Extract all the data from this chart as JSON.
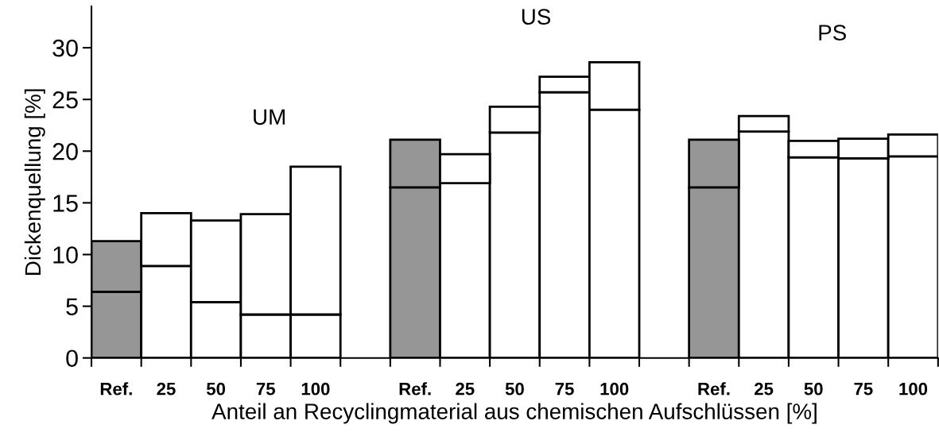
{
  "chart_data": {
    "type": "bar",
    "stacked": true,
    "xlabel": "Anteil an Recyclingmaterial aus chemischen Aufschlüssen [%]",
    "ylabel": "Dickenquellung [%]",
    "categories": [
      "Ref.",
      "25",
      "50",
      "75",
      "100",
      null,
      "Ref.",
      "25",
      "50",
      "75",
      "100",
      null,
      "Ref.",
      "25",
      "50",
      "75",
      "100"
    ],
    "series": [
      {
        "colors": [
          "#969696",
          "#ffffff",
          "#ffffff",
          "#ffffff",
          "#ffffff",
          "#ffffff",
          "#969696",
          "#ffffff",
          "#ffffff",
          "#ffffff",
          "#ffffff",
          "#ffffff",
          "#969696",
          "#ffffff",
          "#ffffff",
          "#ffffff",
          "#ffffff"
        ],
        "values": [
          6.4,
          8.9,
          5.4,
          4.2,
          4.2,
          null,
          16.5,
          16.9,
          21.8,
          25.7,
          24.0,
          null,
          16.5,
          21.9,
          19.4,
          19.3,
          19.5
        ]
      },
      {
        "colors": [
          "#969696",
          "#ffffff",
          "#ffffff",
          "#ffffff",
          "#ffffff",
          "#ffffff",
          "#969696",
          "#ffffff",
          "#ffffff",
          "#ffffff",
          "#ffffff",
          "#ffffff",
          "#969696",
          "#ffffff",
          "#ffffff",
          "#ffffff",
          "#ffffff"
        ],
        "values": [
          4.9,
          5.1,
          7.9,
          9.7,
          14.3,
          null,
          4.6,
          2.8,
          2.5,
          1.5,
          4.6,
          null,
          4.6,
          1.5,
          1.6,
          1.9,
          2.1
        ]
      }
    ],
    "ylim": [
      0,
      34
    ],
    "yticks": [
      0,
      5,
      10,
      15,
      20,
      25,
      30
    ],
    "grid": false,
    "legend": false,
    "annotations": [
      "UM",
      "US",
      "PS"
    ]
  }
}
